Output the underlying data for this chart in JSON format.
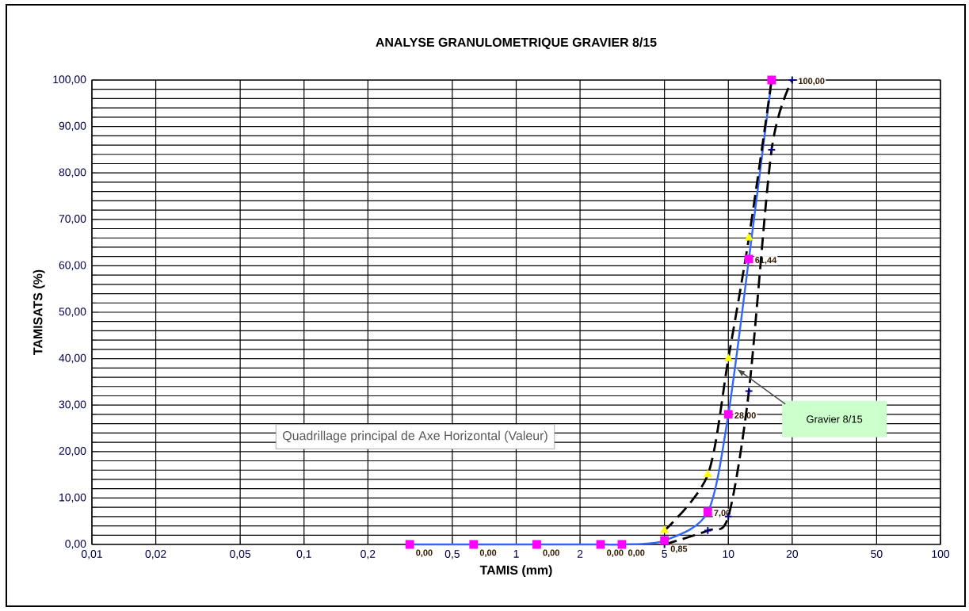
{
  "chart_data": {
    "type": "line",
    "title": "ANALYSE GRANULOMETRIQUE  GRAVIER 8/15",
    "xlabel": "TAMIS (mm)",
    "ylabel": "TAMISATS (%)",
    "log": "x",
    "grid": true,
    "xlim": [
      0.01,
      100
    ],
    "xticks": [
      {
        "value": 0.01,
        "label": "0,01"
      },
      {
        "value": 0.02,
        "label": "0,02"
      },
      {
        "value": 0.05,
        "label": "0,05"
      },
      {
        "value": 0.1,
        "label": "0,1"
      },
      {
        "value": 0.2,
        "label": "0,2"
      },
      {
        "value": 0.5,
        "label": "0,5"
      },
      {
        "value": 1,
        "label": "1"
      },
      {
        "value": 2,
        "label": "2"
      },
      {
        "value": 5,
        "label": "5"
      },
      {
        "value": 10,
        "label": "10"
      },
      {
        "value": 20,
        "label": "20"
      },
      {
        "value": 50,
        "label": "50"
      },
      {
        "value": 100,
        "label": "100"
      }
    ],
    "ylim": [
      0,
      100
    ],
    "yticks": [
      {
        "value": 0,
        "label": "0,00"
      },
      {
        "value": 10,
        "label": "10,00"
      },
      {
        "value": 20,
        "label": "20,00"
      },
      {
        "value": 30,
        "label": "30,00"
      },
      {
        "value": 40,
        "label": "40,00"
      },
      {
        "value": 50,
        "label": "50,00"
      },
      {
        "value": 60,
        "label": "60,00"
      },
      {
        "value": 70,
        "label": "70,00"
      },
      {
        "value": 80,
        "label": "80,00"
      },
      {
        "value": 90,
        "label": "90,00"
      },
      {
        "value": 100,
        "label": "100,00"
      }
    ],
    "series": [
      {
        "color": "#3366ff",
        "colors": [
          "#ff00ff",
          "#ff00ff",
          "#ff00ff",
          "#ff00ff",
          "#ff00ff",
          "#ff00ff",
          "#ff00ff",
          "#ff00ff",
          "#ff00ff",
          "#ff00ff"
        ],
        "marker": "square",
        "line_style": "solid",
        "x": [
          0.315,
          0.63,
          1.25,
          2.5,
          3.15,
          5,
          8,
          10,
          12.5,
          16
        ],
        "values": [
          0,
          0,
          0,
          0,
          0,
          0.85,
          7,
          28,
          61.44,
          100
        ],
        "value_labels": [
          "0,00",
          "0,00",
          "0,00",
          "0,00",
          "0,00",
          "0,85",
          "7,00",
          "28,00",
          "61,44",
          null
        ]
      },
      {
        "color": "#000000",
        "colors": [
          "#ffff00",
          "#ffff00",
          "#ffff00",
          "#ffff00",
          "#ffff00"
        ],
        "marker": "triangle",
        "line_style": "dashed",
        "x": [
          5,
          8,
          10,
          12.5,
          16
        ],
        "values": [
          3,
          15,
          40,
          66,
          100
        ]
      },
      {
        "color": "#000000",
        "colors": [
          "#000080",
          "#000080",
          "#000080",
          "#000080",
          "#000080",
          "#000080"
        ],
        "marker": "cross",
        "line_style": "dashed",
        "x": [
          5,
          8,
          10,
          12.5,
          16,
          20
        ],
        "values": [
          0,
          3,
          6,
          33,
          85,
          100
        ],
        "value_labels": [
          null,
          null,
          null,
          null,
          null,
          "100,00"
        ]
      }
    ],
    "annotations": [
      "Gravier 8/15",
      "Quadrillage principal de Axe Horizontal (Valeur)"
    ]
  }
}
